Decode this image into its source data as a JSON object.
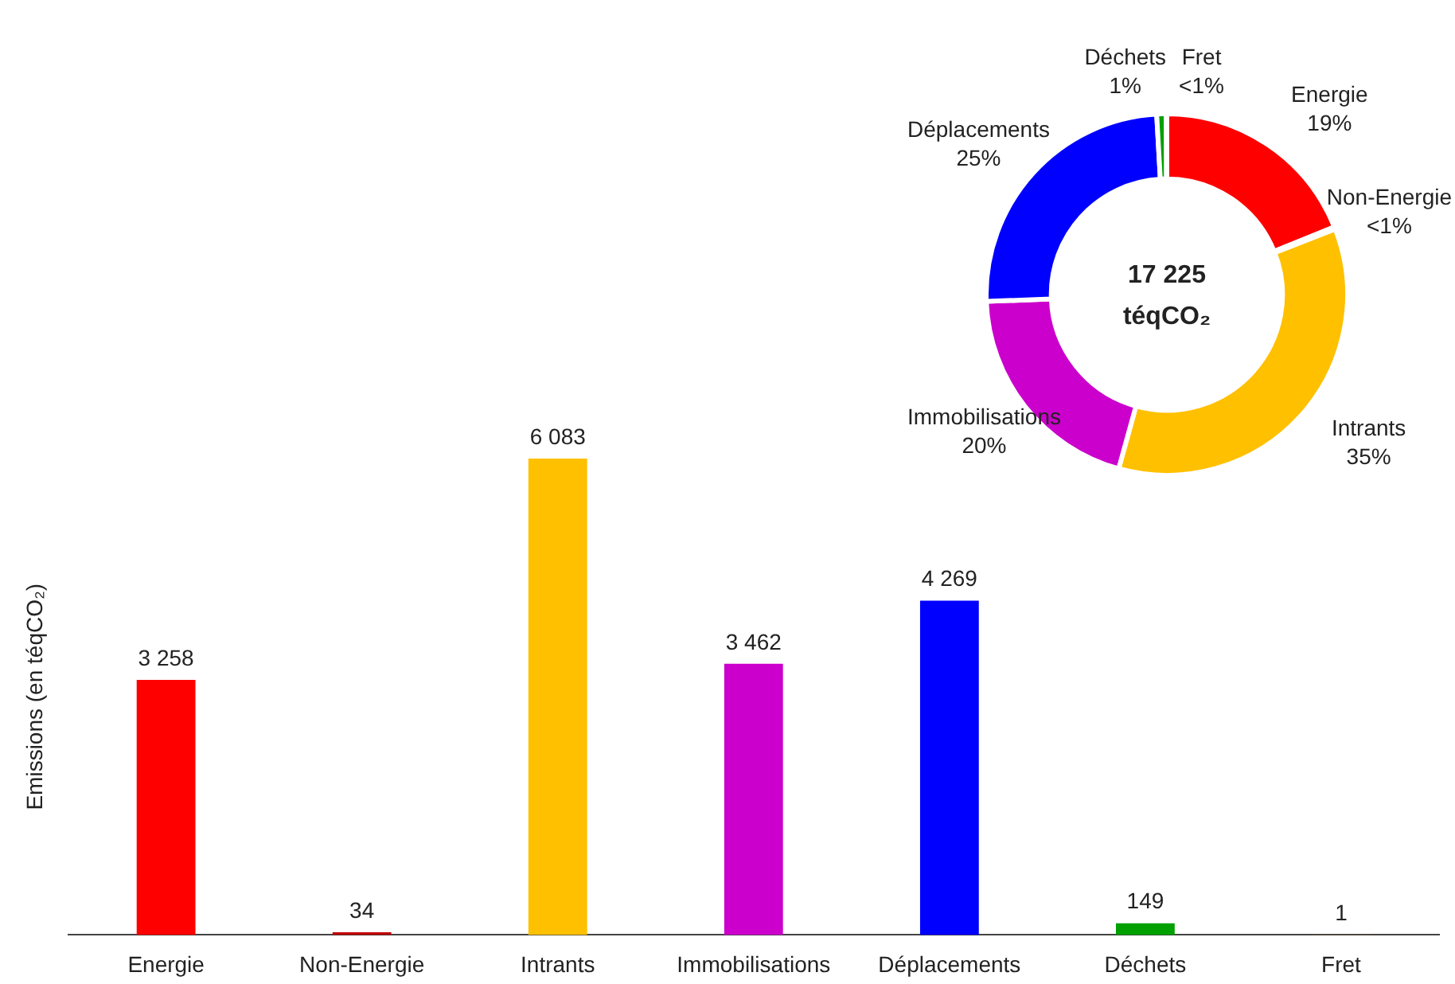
{
  "chart_data": [
    {
      "type": "bar",
      "ylabel": "Emissions (en téqCO₂)",
      "categories": [
        "Energie",
        "Non-Energie",
        "Intrants",
        "Immobilisations",
        "Déplacements",
        "Déchets",
        "Fret"
      ],
      "values": [
        3258,
        34,
        6083,
        3462,
        4269,
        149,
        1
      ],
      "colors": [
        "#ff0000",
        "#c00000",
        "#ffc000",
        "#cc00cc",
        "#0000ff",
        "#00a000",
        "#c55a11"
      ],
      "tick_labels": "x",
      "data_labels": true,
      "grid": false,
      "legend": false
    },
    {
      "type": "donut",
      "categories": [
        "Energie",
        "Non-Energie",
        "Intrants",
        "Immobilisations",
        "Déplacements",
        "Déchets",
        "Fret"
      ],
      "values": [
        18.9,
        0.2,
        35.2,
        20.1,
        24.7,
        0.85,
        0.05
      ],
      "colors": [
        "#ff0000",
        "#c00000",
        "#ffc000",
        "#cc00cc",
        "#0000ff",
        "#00a000",
        "#c55a11"
      ],
      "value_labels": [
        "19%",
        "<1%",
        "35%",
        "20%",
        "25%",
        "1%",
        "<1%"
      ],
      "annotations": [
        "17 225 téqCO₂"
      ],
      "legend": false
    }
  ]
}
